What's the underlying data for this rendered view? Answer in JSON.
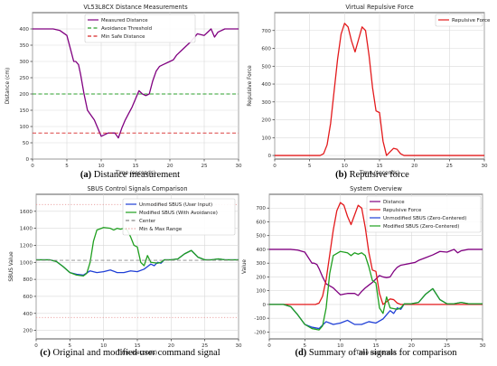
{
  "figure": {
    "captions": [
      {
        "letter": "(a)",
        "text": " Distance measurement"
      },
      {
        "letter": "(b)",
        "text": " Repulsive force"
      },
      {
        "letter": "(c)",
        "text": " Original and modified user command signal"
      },
      {
        "letter": "(d)",
        "text": " Summary of all signals for comparison"
      }
    ]
  },
  "chart_data": [
    {
      "id": "a",
      "type": "line",
      "title": "VL53L8CX Distance Measurements",
      "xlabel": "Time (seconds)",
      "ylabel": "Distance (cm)",
      "xlim": [
        0,
        30
      ],
      "ylim": [
        0,
        450
      ],
      "xticks": [
        0,
        5,
        10,
        15,
        20,
        25,
        30
      ],
      "yticks": [
        0,
        50,
        100,
        150,
        200,
        250,
        300,
        350,
        400
      ],
      "grid": true,
      "legend_position": "top-center",
      "series": [
        {
          "name": "Measured Distance",
          "color": "#800080",
          "style": "solid",
          "x": [
            0,
            3,
            4,
            5,
            5.5,
            6,
            6.3,
            6.7,
            7,
            7.5,
            8,
            9,
            9.5,
            10,
            11,
            12,
            12.5,
            13,
            13.5,
            14,
            14.5,
            15,
            15.5,
            16,
            16.5,
            17,
            17.5,
            18,
            18.5,
            19,
            20,
            20.5,
            21,
            22,
            23,
            24,
            25,
            25.5,
            26,
            26.5,
            27,
            28,
            30
          ],
          "y": [
            400,
            400,
            395,
            380,
            340,
            300,
            300,
            290,
            260,
            200,
            150,
            120,
            95,
            70,
            80,
            80,
            65,
            95,
            120,
            140,
            160,
            185,
            210,
            200,
            195,
            200,
            240,
            270,
            285,
            290,
            300,
            305,
            320,
            340,
            360,
            385,
            380,
            390,
            400,
            375,
            390,
            400,
            400
          ]
        },
        {
          "name": "Avoidance Threshold",
          "color": "#2ca02c",
          "style": "dashed",
          "x": [
            0,
            30
          ],
          "y": [
            200,
            200
          ]
        },
        {
          "name": "Min Safe Distance",
          "color": "#d62728",
          "style": "dashed",
          "x": [
            0,
            30
          ],
          "y": [
            80,
            80
          ]
        }
      ]
    },
    {
      "id": "b",
      "type": "line",
      "title": "Virtual Repulsive Force",
      "xlabel": "Time (seconds)",
      "ylabel": "Repulsive Force",
      "xlim": [
        0,
        30
      ],
      "ylim": [
        -20,
        800
      ],
      "xticks": [
        0,
        5,
        10,
        15,
        20,
        25,
        30
      ],
      "yticks": [
        0,
        100,
        200,
        300,
        400,
        500,
        600,
        700
      ],
      "grid": true,
      "legend_position": "top-right",
      "series": [
        {
          "name": "Repulsive Force",
          "color": "#e31a1c",
          "style": "solid",
          "x": [
            0,
            6.5,
            7,
            7.5,
            8,
            8.5,
            9,
            9.5,
            10,
            10.5,
            11,
            11.5,
            12,
            12.5,
            13,
            13.5,
            14,
            14.5,
            15,
            15.5,
            16,
            16.5,
            17,
            17.5,
            18,
            18.5,
            19,
            30
          ],
          "y": [
            0,
            0,
            10,
            60,
            180,
            360,
            540,
            680,
            740,
            720,
            640,
            580,
            650,
            720,
            700,
            560,
            380,
            250,
            240,
            80,
            0,
            20,
            40,
            35,
            10,
            0,
            0,
            0
          ]
        }
      ]
    },
    {
      "id": "c",
      "type": "line",
      "title": "SBUS Control Signals Comparison",
      "xlabel": "Time (seconds)",
      "ylabel": "SBUS Value",
      "xlim": [
        0,
        30
      ],
      "ylim": [
        100,
        1800
      ],
      "xticks": [
        0,
        5,
        10,
        15,
        20,
        25,
        30
      ],
      "yticks": [
        200,
        400,
        600,
        800,
        1000,
        1200,
        1400,
        1600
      ],
      "grid": true,
      "legend_position": "top-right",
      "series": [
        {
          "name": "Unmodified SBUS (User Input)",
          "color": "#1f3fd6",
          "style": "solid",
          "x": [
            0,
            2,
            3,
            4,
            5,
            6,
            7,
            8,
            9,
            10,
            11,
            12,
            13,
            14,
            15,
            16,
            16.5,
            17,
            17.5,
            18,
            18.5,
            19,
            20,
            21,
            22,
            23,
            24,
            25,
            26,
            27,
            28,
            30
          ],
          "y": [
            1030,
            1030,
            1010,
            950,
            880,
            860,
            850,
            900,
            880,
            890,
            910,
            880,
            880,
            900,
            890,
            920,
            950,
            980,
            960,
            1000,
            990,
            1030,
            1030,
            1040,
            1100,
            1140,
            1060,
            1030,
            1030,
            1040,
            1030,
            1030
          ]
        },
        {
          "name": "Modified SBUS (With Avoidance)",
          "color": "#1f9f1f",
          "style": "solid",
          "x": [
            0,
            2,
            3,
            4,
            5,
            6,
            7,
            7.5,
            8,
            8.5,
            9,
            10,
            11,
            11.5,
            12,
            12.5,
            13,
            13.5,
            14,
            14.5,
            15,
            15.5,
            16,
            16.5,
            17,
            18,
            18.5,
            19,
            20,
            21,
            22,
            23,
            24,
            25,
            26,
            27,
            28,
            30
          ],
          "y": [
            1030,
            1030,
            1010,
            950,
            880,
            850,
            840,
            870,
            1000,
            1250,
            1380,
            1410,
            1400,
            1380,
            1400,
            1390,
            1400,
            1380,
            1300,
            1200,
            1180,
            1000,
            960,
            1080,
            1000,
            990,
            1000,
            1030,
            1030,
            1040,
            1100,
            1140,
            1060,
            1030,
            1030,
            1040,
            1030,
            1030
          ]
        },
        {
          "name": "Center",
          "color": "#888888",
          "style": "dashed",
          "x": [
            0,
            30
          ],
          "y": [
            1024,
            1024
          ]
        },
        {
          "name": "Min & Max Range",
          "color": "#e89a9a",
          "style": "dotted",
          "x": [
            0,
            30
          ],
          "y": [
            1680,
            1680
          ]
        },
        {
          "name": "",
          "color": "#e89a9a",
          "style": "dotted",
          "x": [
            0,
            30
          ],
          "y": [
            352,
            352
          ]
        }
      ]
    },
    {
      "id": "d",
      "type": "line",
      "title": "System Overview",
      "xlabel": "Time (seconds)",
      "ylabel": "Value",
      "xlim": [
        0,
        30
      ],
      "ylim": [
        -250,
        800
      ],
      "xticks": [
        0,
        5,
        10,
        15,
        20,
        25,
        30
      ],
      "yticks": [
        -200,
        -100,
        0,
        100,
        200,
        300,
        400,
        500,
        600,
        700
      ],
      "grid": true,
      "legend_position": "top-right",
      "series": [
        {
          "name": "Distance",
          "color": "#800080",
          "style": "solid",
          "x": [
            0,
            3,
            4,
            5,
            5.5,
            6,
            6.3,
            6.7,
            7,
            7.5,
            8,
            9,
            9.5,
            10,
            11,
            12,
            12.5,
            13,
            13.5,
            14,
            14.5,
            15,
            15.5,
            16,
            16.5,
            17,
            17.5,
            18,
            18.5,
            19,
            20,
            20.5,
            21,
            22,
            23,
            24,
            25,
            25.5,
            26,
            26.5,
            27,
            28,
            30
          ],
          "y": [
            400,
            400,
            395,
            380,
            340,
            300,
            300,
            290,
            260,
            200,
            150,
            120,
            95,
            70,
            80,
            80,
            65,
            95,
            120,
            140,
            160,
            185,
            210,
            200,
            195,
            200,
            240,
            270,
            285,
            290,
            300,
            305,
            320,
            340,
            360,
            385,
            380,
            390,
            400,
            375,
            390,
            400,
            400
          ]
        },
        {
          "name": "Repulsive Force",
          "color": "#e31a1c",
          "style": "solid",
          "x": [
            0,
            6.5,
            7,
            7.5,
            8,
            8.5,
            9,
            9.5,
            10,
            10.5,
            11,
            11.5,
            12,
            12.5,
            13,
            13.5,
            14,
            14.5,
            15,
            15.5,
            16,
            16.5,
            17,
            17.5,
            18,
            18.5,
            19,
            30
          ],
          "y": [
            0,
            0,
            10,
            60,
            180,
            360,
            540,
            680,
            740,
            720,
            640,
            580,
            650,
            720,
            700,
            560,
            380,
            250,
            240,
            80,
            0,
            20,
            40,
            35,
            10,
            0,
            0,
            0
          ]
        },
        {
          "name": "Unmodified SBUS (Zero-Centered)",
          "color": "#1f3fd6",
          "style": "solid",
          "x": [
            0,
            2,
            3,
            4,
            5,
            6,
            7,
            8,
            9,
            10,
            11,
            12,
            13,
            14,
            15,
            16,
            16.5,
            17,
            17.5,
            18,
            18.5,
            19,
            20,
            21,
            22,
            23,
            24,
            25,
            26,
            27,
            28,
            30
          ],
          "y": [
            0,
            0,
            -15,
            -75,
            -145,
            -165,
            -175,
            -125,
            -145,
            -135,
            -115,
            -145,
            -145,
            -125,
            -135,
            -105,
            -75,
            -45,
            -65,
            -25,
            -35,
            5,
            5,
            15,
            75,
            115,
            35,
            5,
            5,
            15,
            5,
            5
          ]
        },
        {
          "name": "Modified SBUS (Zero-Centered)",
          "color": "#1f9f1f",
          "style": "solid",
          "x": [
            0,
            2,
            3,
            4,
            5,
            6,
            7,
            7.5,
            8,
            8.5,
            9,
            10,
            11,
            11.5,
            12,
            12.5,
            13,
            13.5,
            14,
            14.5,
            15,
            15.5,
            16,
            16.5,
            17,
            18,
            18.5,
            19,
            20,
            21,
            22,
            23,
            24,
            25,
            26,
            27,
            28,
            30
          ],
          "y": [
            0,
            0,
            -15,
            -75,
            -145,
            -175,
            -185,
            -155,
            -25,
            225,
            355,
            385,
            375,
            355,
            375,
            365,
            375,
            355,
            275,
            175,
            155,
            -25,
            -65,
            55,
            -25,
            -35,
            -25,
            5,
            5,
            15,
            75,
            115,
            35,
            5,
            5,
            15,
            5,
            5
          ]
        }
      ]
    }
  ]
}
